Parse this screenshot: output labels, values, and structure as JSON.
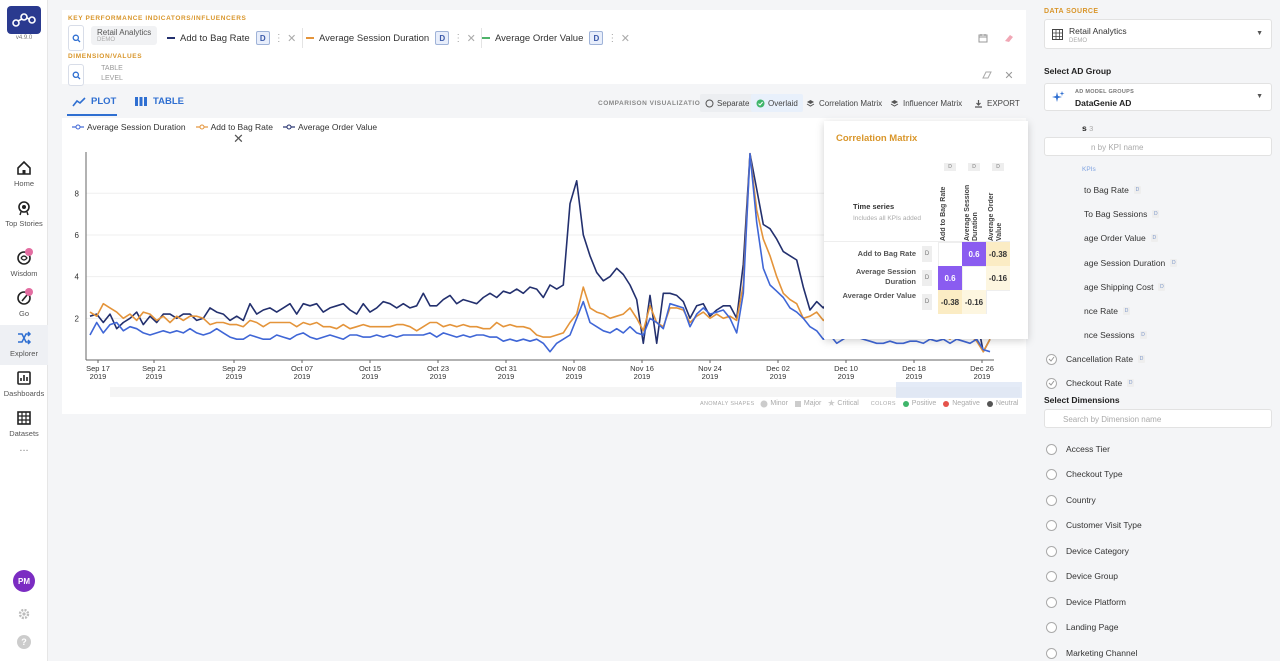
{
  "app": {
    "version": "v4.9.0"
  },
  "nav": {
    "items": [
      {
        "label": "Home",
        "icon": "home-icon"
      },
      {
        "label": "Top Stories",
        "icon": "top-stories-icon"
      },
      {
        "label": "Wisdom",
        "icon": "wisdom-icon"
      },
      {
        "label": "Go",
        "icon": "go-icon"
      },
      {
        "label": "Explorer",
        "icon": "explorer-icon"
      },
      {
        "label": "Dashboards",
        "icon": "dashboards-icon"
      },
      {
        "label": "Datasets",
        "icon": "datasets-icon"
      }
    ],
    "more": "...",
    "avatar_initials": "PM"
  },
  "kpi_bar": {
    "section_title": "KEY PERFORMANCE INDICATORS/INFLUENCERS",
    "source_chip": {
      "title": "Retail Analytics",
      "subtitle": "DEMO"
    },
    "kpis": [
      {
        "label": "Add to Bag Rate",
        "color": "#23306e",
        "tag": "D"
      },
      {
        "label": "Average Session Duration",
        "color": "#e4943a",
        "tag": "D"
      },
      {
        "label": "Average Order Value",
        "color": "#4fb36a",
        "tag": "D"
      }
    ],
    "dimension_title": "DIMENSION/VALUES",
    "table_level": "TABLE LEVEL"
  },
  "toolbar": {
    "plot_label": "PLOT",
    "table_label": "TABLE",
    "comparison_label": "COMPARISON VISUALIZATION",
    "separate_label": "Separate",
    "overlaid_label": "Overlaid",
    "correlation_label": "Correlation Matrix",
    "influencer_label": "Influencer Matrix",
    "export_label": "EXPORT"
  },
  "chart_data": {
    "type": "line",
    "ylim": [
      0,
      9.5
    ],
    "yticks": [
      2,
      4,
      6,
      8
    ],
    "xtick_labels": [
      [
        "Sep 17",
        "2019"
      ],
      [
        "Sep 21",
        "2019"
      ],
      [
        "Sep 29",
        "2019"
      ],
      [
        "Oct 07",
        "2019"
      ],
      [
        "Oct 15",
        "2019"
      ],
      [
        "Oct 23",
        "2019"
      ],
      [
        "Oct 31",
        "2019"
      ],
      [
        "Nov 08",
        "2019"
      ],
      [
        "Nov 16",
        "2019"
      ],
      [
        "Nov 24",
        "2019"
      ],
      [
        "Dec 02",
        "2019"
      ],
      [
        "Dec 10",
        "2019"
      ],
      [
        "Dec 18",
        "2019"
      ],
      [
        "Dec 26",
        "2019"
      ]
    ],
    "legend": [
      {
        "name": "Average Session Duration",
        "color": "#3f66d6"
      },
      {
        "name": "Add to Bag Rate",
        "color": "#e4943a"
      },
      {
        "name": "Average Order Value",
        "color": "#23306e"
      }
    ],
    "series": [
      {
        "name": "Average Order Value",
        "color": "#23306e",
        "values": [
          2.1,
          2.2,
          1.8,
          2.2,
          1.5,
          1.8,
          2.0,
          2.3,
          1.7,
          2.1,
          1.8,
          2.2,
          2.2,
          2.0,
          2.2,
          2.2,
          1.9,
          2.0,
          2.5,
          2.3,
          2.2,
          1.9,
          2.1,
          1.9,
          2.7,
          2.2,
          2.4,
          2.5,
          2.3,
          2.5,
          2.7,
          2.2,
          2.7,
          2.6,
          2.7,
          2.3,
          2.5,
          2.6,
          2.7,
          2.4,
          2.2,
          2.7,
          2.3,
          2.5,
          2.8,
          2.7,
          2.5,
          2.7,
          2.5,
          2.6,
          3.2,
          2.6,
          2.6,
          2.9,
          3.1,
          2.7,
          2.9,
          2.8,
          2.7,
          3.0,
          3.2,
          3.0,
          3.3,
          3.2,
          3.4,
          3.2,
          3.5,
          3.4,
          3.0,
          3.6,
          3.4,
          3.6,
          7.5,
          8.6,
          6.0,
          5.0,
          4.2,
          3.8,
          4.0,
          4.4,
          4.1,
          3.6,
          2.9,
          0.8,
          3.1,
          0.8,
          3.2,
          3.2,
          3.1,
          2.8,
          2.0,
          2.6,
          2.7,
          2.1,
          2.4,
          2.6,
          2.6,
          2.0,
          4.6,
          9.9,
          8.2,
          6.5,
          6.3,
          5.8,
          5.2,
          5.0,
          4.8,
          3.5,
          2.4,
          2.8,
          2.5,
          2.9,
          2.3,
          2.4,
          2.7,
          2.7,
          2.4,
          2.5,
          2.3,
          2.4,
          2.4,
          2.5,
          2.2,
          2.3,
          2.0,
          2.4,
          2.1,
          2.0,
          2.4,
          2.2,
          2.0,
          2.1,
          1.5,
          2.0,
          0.4,
          1.0
        ]
      },
      {
        "name": "Add to Bag Rate",
        "color": "#e4943a",
        "values": [
          2.3,
          2.1,
          2.7,
          2.5,
          2.3,
          2.0,
          2.2,
          1.9,
          2.3,
          2.2,
          1.9,
          2.1,
          1.8,
          2.1,
          1.9,
          2.1,
          2.1,
          2.0,
          1.7,
          1.8,
          1.8,
          1.7,
          1.7,
          1.6,
          1.9,
          1.8,
          1.6,
          1.8,
          1.8,
          1.8,
          1.8,
          1.6,
          1.8,
          1.7,
          1.8,
          1.6,
          1.6,
          1.5,
          1.7,
          1.5,
          1.6,
          1.7,
          1.6,
          1.6,
          1.6,
          1.6,
          1.7,
          1.7,
          1.6,
          1.4,
          1.6,
          1.8,
          1.8,
          1.6,
          1.7,
          1.6,
          1.7,
          1.6,
          1.6,
          1.5,
          1.5,
          1.8,
          1.6,
          1.7,
          1.6,
          1.6,
          1.5,
          1.2,
          1.1,
          1.1,
          1.2,
          1.3,
          1.8,
          2.2,
          3.5,
          2.5,
          2.3,
          2.2,
          2.0,
          2.1,
          2.2,
          2.5,
          2.0,
          1.4,
          2.6,
          1.8,
          1.6,
          2.5,
          2.5,
          2.4,
          1.8,
          2.1,
          2.3,
          2.0,
          2.2,
          2.0,
          2.1,
          1.9,
          3.6,
          9.9,
          7.2,
          5.8,
          5.0,
          4.0,
          3.2,
          2.9,
          2.7,
          2.0,
          2.1,
          2.3,
          1.9,
          2.1,
          1.6,
          1.8,
          1.4,
          1.6,
          1.4,
          1.6,
          1.3,
          1.5,
          1.4,
          1.3,
          1.4,
          1.3,
          1.2,
          1.3,
          1.0,
          1.4,
          1.2,
          1.0,
          1.3,
          1.1,
          1.2,
          0.9,
          0.4,
          1.0
        ]
      },
      {
        "name": "Average Session Duration",
        "color": "#3f66d6",
        "values": [
          1.2,
          1.8,
          1.3,
          1.7,
          1.8,
          1.4,
          1.6,
          1.5,
          1.3,
          1.2,
          1.3,
          1.4,
          1.3,
          1.4,
          1.3,
          1.5,
          1.3,
          1.2,
          1.3,
          1.5,
          1.3,
          1.1,
          1.0,
          1.0,
          1.2,
          1.1,
          1.0,
          1.0,
          1.2,
          1.1,
          1.0,
          1.2,
          1.3,
          1.1,
          1.0,
          1.1,
          1.2,
          1.1,
          1.0,
          1.2,
          1.2,
          1.1,
          1.1,
          1.2,
          1.1,
          1.2,
          1.1,
          1.2,
          1.2,
          1.2,
          1.2,
          1.3,
          1.1,
          1.3,
          1.2,
          1.1,
          1.2,
          1.1,
          1.2,
          1.2,
          1.1,
          1.1,
          0.9,
          1.0,
          0.9,
          1.0,
          0.9,
          1.0,
          0.8,
          0.4,
          0.8,
          1.0,
          1.2,
          2.0,
          2.8,
          1.8,
          1.6,
          1.4,
          1.3,
          1.5,
          1.3,
          1.6,
          1.3,
          1.2,
          2.0,
          1.8,
          1.5,
          2.7,
          2.6,
          2.5,
          1.6,
          2.2,
          2.5,
          2.2,
          2.3,
          2.4,
          2.0,
          1.3,
          3.2,
          9.9,
          6.6,
          4.4,
          3.6,
          3.3,
          3.0,
          2.5,
          2.3,
          2.0,
          1.6,
          1.4,
          1.0,
          1.2,
          0.8,
          1.0,
          1.2,
          1.1,
          1.0,
          0.9,
          0.8,
          0.8,
          0.9,
          0.8,
          0.8,
          0.9,
          0.9,
          0.8,
          1.0,
          0.9,
          1.0,
          0.8,
          1.0,
          0.9,
          0.8,
          1.0,
          0.5,
          0.4
        ]
      }
    ],
    "marker_legend": {
      "anomaly_shapes_label": "ANOMALY SHAPES",
      "minor": "Minor",
      "major": "Major",
      "critical": "Critical",
      "colors_label": "COLORS",
      "positive": "Positive",
      "negative": "Negative",
      "neutral": "Neutral"
    }
  },
  "correlation": {
    "title": "Correlation Matrix",
    "time_series_label": "Time series",
    "time_series_sub": "Includes all KPIs added",
    "columns": [
      "Add to Bag Rate",
      "Average Session Duration",
      "Average Order Value"
    ],
    "rows": [
      "Add to Bag Rate",
      "Average Session Duration",
      "Average Order Value"
    ],
    "tag": "D",
    "matrix": [
      [
        "",
        "0.6",
        "-0.38"
      ],
      [
        "0.6",
        "",
        "-0.16"
      ],
      [
        "-0.38",
        "-0.16",
        ""
      ]
    ]
  },
  "right_panel": {
    "data_source_label": "DATA SOURCE",
    "data_source_value": "Retail Analytics",
    "data_source_sub": "DEMO",
    "ad_group_heading": "Select AD Group",
    "ad_model_label": "AD MODEL GROUPS",
    "ad_model_value": "DataGenie AD",
    "kpis_heading": "s",
    "kpis_count": "3",
    "kpi_search_placeholder": "n by KPI name",
    "kpis_sublabel": "KPIs",
    "kpi_items": [
      "to Bag Rate",
      "To Bag Sessions",
      "age Order Value",
      "age Session Duration",
      "age Shipping Cost",
      "nce Rate",
      "nce Sessions",
      "Cancellation Rate",
      "Checkout Rate"
    ],
    "dimensions_heading": "Select Dimensions",
    "dimension_search_placeholder": "Search by Dimension name",
    "dimension_items": [
      "Access Tier",
      "Checkout Type",
      "Country",
      "Customer Visit Type",
      "Device Category",
      "Device Group",
      "Device Platform",
      "Landing Page",
      "Marketing Channel"
    ],
    "tag": "D"
  }
}
